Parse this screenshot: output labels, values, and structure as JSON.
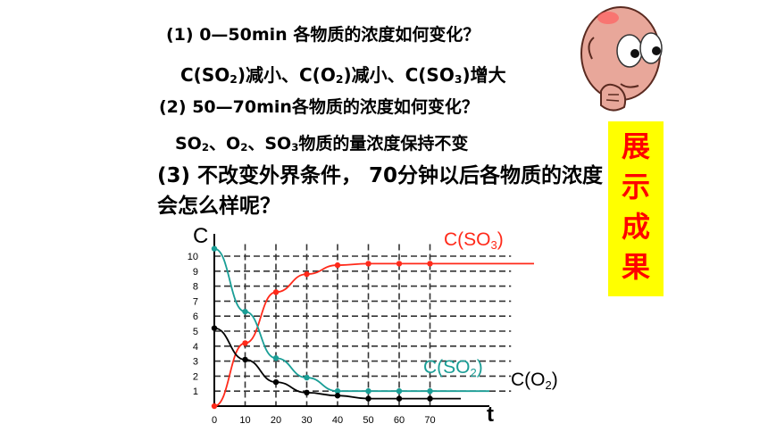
{
  "questions": {
    "q1": "(1) 0—50min  各物质的浓度如何变化？",
    "a1_parts": [
      "C(SO",
      "2",
      ")减小、C(O",
      "2",
      ")减小、C(SO",
      "3",
      ")增大"
    ],
    "q2": "(2) 50—70min各物质的浓度如何变化？",
    "a2_parts": [
      "SO",
      "2",
      "、O",
      "2",
      "、SO",
      "3",
      "物质的量浓度保持不变"
    ],
    "q3": "(3) 不改变外界条件，  70分钟以后各物质的浓度会怎么样呢？"
  },
  "showcase": {
    "label": "展示成果",
    "bg": "#ffff00",
    "color": "#ff0000"
  },
  "mascot": {
    "icon": "thinking-face-icon"
  },
  "chart_data": {
    "type": "line",
    "xlabel": "t",
    "ylabel": "C",
    "x_ticks": [
      0,
      10,
      20,
      30,
      40,
      50,
      60,
      70
    ],
    "y_ticks": [
      1,
      2,
      3,
      4,
      5,
      6,
      7,
      8,
      9,
      10
    ],
    "xlim": [
      0,
      105
    ],
    "ylim": [
      0,
      10.8
    ],
    "grid": true,
    "series": [
      {
        "name": "C(SO3)",
        "color": "#ff2a1a",
        "x": [
          0,
          10,
          20,
          30,
          40,
          50,
          60,
          70,
          80
        ],
        "y": [
          0,
          4.2,
          7.6,
          8.8,
          9.4,
          9.5,
          9.5,
          9.5,
          9.5
        ]
      },
      {
        "name": "C(SO2)",
        "color": "#1a9e96",
        "x": [
          0,
          10,
          20,
          30,
          40,
          50,
          60,
          70,
          80
        ],
        "y": [
          10.5,
          6.3,
          3.2,
          1.9,
          1.0,
          1.0,
          1.0,
          1.0,
          1.0
        ]
      },
      {
        "name": "C(O2)",
        "color": "#000000",
        "x": [
          0,
          10,
          20,
          30,
          40,
          50,
          60,
          70,
          80
        ],
        "y": [
          5.2,
          3.1,
          1.6,
          0.9,
          0.7,
          0.5,
          0.5,
          0.5,
          0.5
        ]
      }
    ]
  }
}
